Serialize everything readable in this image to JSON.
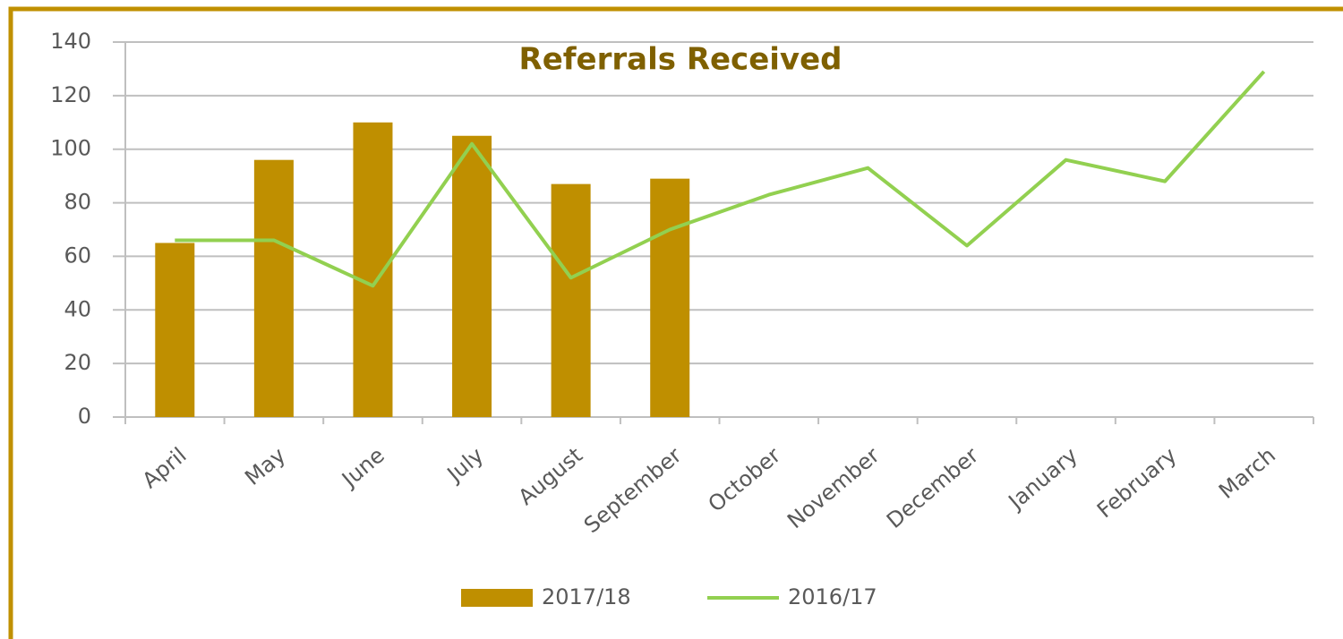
{
  "chart_data": {
    "type": "bar",
    "title": "Referrals Received",
    "categories": [
      "April",
      "May",
      "June",
      "July",
      "August",
      "September",
      "October",
      "November",
      "December",
      "January",
      "February",
      "March"
    ],
    "series": [
      {
        "name": "2017/18",
        "type": "bar",
        "color": "#bf8f00",
        "values": [
          65,
          96,
          110,
          105,
          87,
          89,
          null,
          null,
          null,
          null,
          null,
          null
        ]
      },
      {
        "name": "2016/17",
        "type": "line",
        "color": "#92d050",
        "values": [
          66,
          66,
          49,
          102,
          52,
          70,
          83,
          93,
          64,
          96,
          88,
          129
        ]
      }
    ],
    "ylim": [
      0,
      140
    ],
    "yticks": [
      0,
      20,
      40,
      60,
      80,
      100,
      120,
      140
    ],
    "grid": true,
    "legend": "bottom"
  }
}
